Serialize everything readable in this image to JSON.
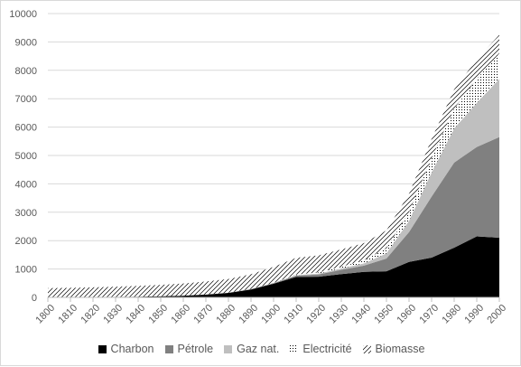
{
  "chart_data": {
    "type": "area",
    "stacked": true,
    "x": [
      1800,
      1810,
      1820,
      1830,
      1840,
      1850,
      1860,
      1870,
      1880,
      1890,
      1900,
      1910,
      1920,
      1930,
      1940,
      1950,
      1960,
      1970,
      1980,
      1990,
      2000
    ],
    "ylim": [
      0,
      10000
    ],
    "yticks": [
      0,
      1000,
      2000,
      3000,
      4000,
      5000,
      6000,
      7000,
      8000,
      9000,
      10000
    ],
    "xticks": [
      "1800",
      "1810",
      "1820",
      "1830",
      "1840",
      "1850",
      "1860",
      "1870",
      "1880",
      "1890",
      "1900",
      "1910",
      "1920",
      "1930",
      "1940",
      "1950",
      "1960",
      "1970",
      "1980",
      "1990",
      "2000"
    ],
    "grid": true,
    "legend_position": "bottom",
    "series": [
      {
        "name": "Charbon",
        "color": "#000000",
        "pattern": "solid",
        "values": [
          5,
          10,
          15,
          20,
          25,
          40,
          60,
          100,
          160,
          280,
          480,
          720,
          730,
          820,
          900,
          920,
          1250,
          1400,
          1750,
          2150,
          2100
        ]
      },
      {
        "name": "Pétrole",
        "color": "#808080",
        "pattern": "solid",
        "values": [
          0,
          0,
          0,
          0,
          0,
          0,
          0,
          2,
          5,
          10,
          20,
          45,
          80,
          150,
          220,
          450,
          1050,
          2150,
          3000,
          3150,
          3550
        ]
      },
      {
        "name": "Gaz nat.",
        "color": "#bfbfbf",
        "pattern": "solid",
        "values": [
          0,
          0,
          0,
          0,
          0,
          0,
          0,
          0,
          2,
          5,
          10,
          20,
          30,
          50,
          80,
          180,
          400,
          850,
          1200,
          1550,
          2050
        ]
      },
      {
        "name": "Electricité",
        "color": "#000000",
        "pattern": "dots",
        "values": [
          0,
          0,
          0,
          0,
          0,
          0,
          0,
          0,
          0,
          0,
          5,
          20,
          40,
          60,
          100,
          180,
          300,
          500,
          700,
          850,
          900
        ]
      },
      {
        "name": "Biomasse",
        "color": "#000000",
        "pattern": "diagonal",
        "values": [
          320,
          330,
          340,
          360,
          380,
          400,
          430,
          460,
          480,
          520,
          560,
          590,
          600,
          610,
          610,
          630,
          650,
          680,
          680,
          680,
          650
        ]
      }
    ]
  }
}
